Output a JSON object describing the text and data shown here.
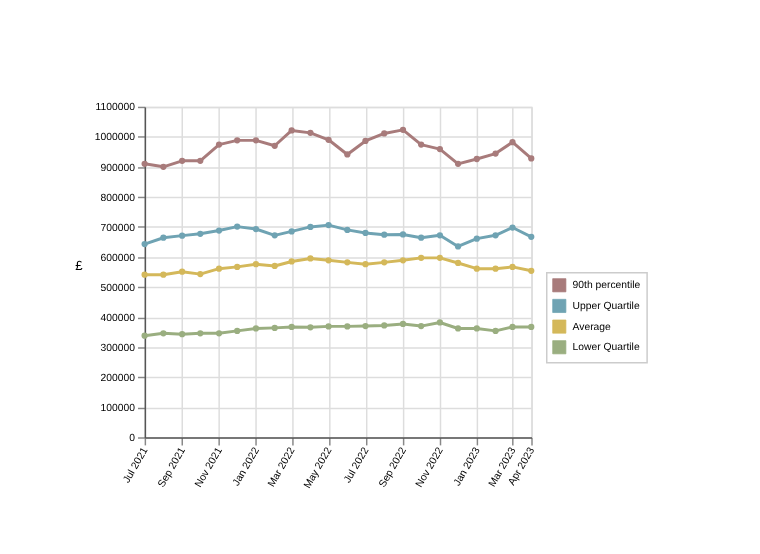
{
  "chart_data": {
    "type": "line",
    "ylabel": "£",
    "x": [
      "2021-07",
      "2021-08",
      "2021-09",
      "2021-10",
      "2021-11",
      "2021-12",
      "2022-01",
      "2022-02",
      "2022-03",
      "2022-04",
      "2022-05",
      "2022-06",
      "2022-07",
      "2022-08",
      "2022-09",
      "2022-10",
      "2022-11",
      "2022-12",
      "2023-01",
      "2023-02",
      "2023-03",
      "2023-04"
    ],
    "series": [
      {
        "name": "90th percentile",
        "color": "#a87b7b",
        "values": [
          910000,
          900000,
          920000,
          920000,
          974000,
          988000,
          988000,
          970000,
          1021000,
          1013000,
          990000,
          941000,
          986000,
          1011000,
          1023000,
          974000,
          959000,
          910000,
          926000,
          944000,
          982000,
          928000
        ]
      },
      {
        "name": "Upper Quartile",
        "color": "#6fa3b3",
        "values": [
          643000,
          664000,
          671000,
          677000,
          688000,
          701000,
          693000,
          672000,
          685000,
          700000,
          706000,
          690000,
          680000,
          674000,
          675000,
          664000,
          672000,
          635000,
          661000,
          672000,
          698000,
          667000
        ]
      },
      {
        "name": "Average",
        "color": "#d4b85a",
        "values": [
          541000,
          541000,
          551000,
          543000,
          561000,
          567000,
          576000,
          570000,
          585000,
          595000,
          589000,
          582000,
          576000,
          582000,
          589000,
          597000,
          597000,
          580000,
          561000,
          561000,
          567000,
          554000
        ]
      },
      {
        "name": "Lower Quartile",
        "color": "#9aae80",
        "values": [
          338000,
          346000,
          343000,
          346000,
          346000,
          354000,
          362000,
          364000,
          367000,
          366000,
          369000,
          369000,
          370000,
          372000,
          377000,
          370000,
          382000,
          362000,
          362000,
          354000,
          367000,
          367000
        ]
      }
    ],
    "xlim": [
      "2021-07",
      "2023-04"
    ],
    "xticks": [
      {
        "value": "2021-07",
        "label": "Jul 2021"
      },
      {
        "value": "2021-09",
        "label": "Sep 2021"
      },
      {
        "value": "2021-11",
        "label": "Nov 2021"
      },
      {
        "value": "2022-01",
        "label": "Jan 2022"
      },
      {
        "value": "2022-03",
        "label": "Mar 2022"
      },
      {
        "value": "2022-05",
        "label": "May 2022"
      },
      {
        "value": "2022-07",
        "label": "Jul 2022"
      },
      {
        "value": "2022-09",
        "label": "Sep 2022"
      },
      {
        "value": "2022-11",
        "label": "Nov 2022"
      },
      {
        "value": "2023-01",
        "label": "Jan 2023"
      },
      {
        "value": "2023-03",
        "label": "Mar 2023"
      },
      {
        "value": "2023-04",
        "label": "Apr 2023"
      }
    ],
    "ylim": [
      0,
      1100000
    ],
    "yticks": [
      0,
      100000,
      200000,
      300000,
      400000,
      500000,
      600000,
      700000,
      800000,
      900000,
      1000000,
      1100000
    ],
    "grid": true,
    "legend": "right",
    "marker": "circle",
    "line_style": "solid"
  }
}
